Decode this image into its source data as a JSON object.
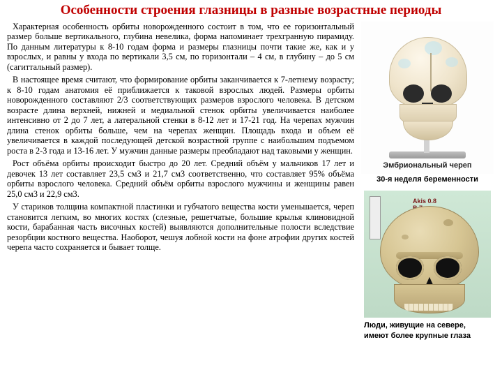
{
  "title_color": "#c00000",
  "title": "Особенности строения глазницы в разные возрастные периоды",
  "paragraphs": {
    "p1": "Характерная особенность орбиты новорожденного состоит в том, что ее горизонтальный размер больше вертикального, глубина невелика, форма напоминает трехгранную пирамиду. По данным литературы к 8-10 годам форма и размеры глазницы почти такие же, как и у взрослых, и равны у входа по вертикали 3,5 см, по горизонтали – 4 см, в глубину – до 5 см (сагиттальный размер).",
    "p2": "В настоящее время считают, что формирование орбиты заканчивается к 7-летнему возрасту; к 8-10 годам анатомия её приближается к таковой взрослых людей. Размеры орбиты новорожденного составляют 2/3 соответствующих размеров взрослого человека. В детском возрасте длина верхней, нижней и медиальной стенок орбиты увеличивается наиболее интенсивно от 2 до 7 лет, а латеральной стенки в 8-12 лет и 17-21 год. На черепах мужчин длина стенок орбиты больше, чем на черепах женщин. Площадь входа и объем её увеличивается в каждой последующей детской возрастной группе с наибольшим подъемом роста в 2-3 года и 13-16 лет. У мужчин данные размеры преобладают над таковыми у женщин.",
    "p3": "Рост объёма орбиты происходит быстро до 20 лет. Средний объём у мальчиков 17 лет и девочек 13 лет составляет 23,5 см3 и 21,7 см3 соответственно, что составляет 95% объёма орбиты взрослого человека. Средний объём орбиты взрослого мужчины и женщины равен 25,0 см3 и 22,9 см3.",
    "p4": "У стариков толщина компактной пластинки и губчатого вещества кости уменьшается, череп становится легким, во многих костях (слезные, решетчатые, большие крылья клиновидной кости, барабанная часть височных костей) выявляются дополнительные полости вследствие резорбции костного вещества. Наоборот, чешуя лобной кости на фоне атрофии других костей черепа часто сохраняется и бывает толще."
  },
  "right": {
    "img1_caption_in": "Эмбриональный череп",
    "img1_caption": "30-я неделя беременности",
    "img2_label": "Akis 0.8\nB 7",
    "img2_caption": "Люди, живущие на севере, имеют более крупные глаза"
  }
}
